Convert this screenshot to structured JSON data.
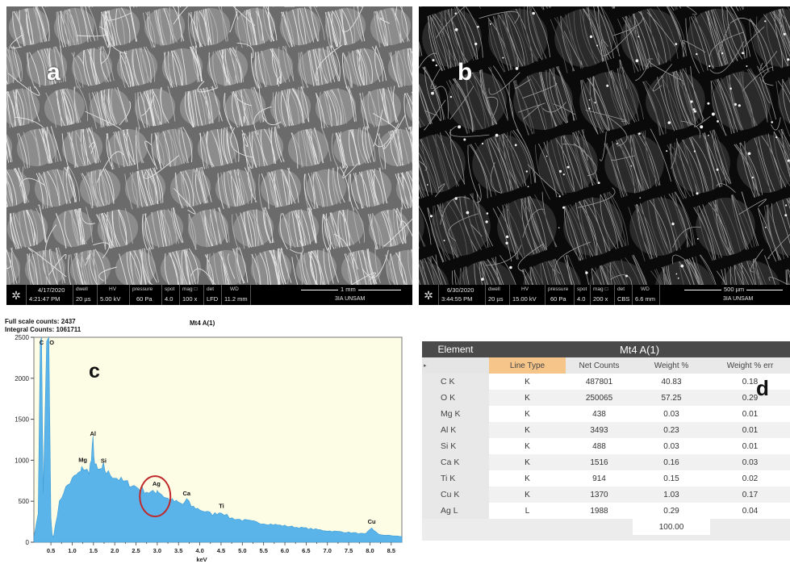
{
  "panels": {
    "a": {
      "letter": "a",
      "info": {
        "date": "4/17/2020",
        "time": "4:21:47 PM",
        "dwell_label": "dwell",
        "dwell": "20 µs",
        "hv_label": "HV",
        "hv": "5.00 kV",
        "pressure_label": "pressure",
        "pressure": "60 Pa",
        "spot_label": "spot",
        "spot": "4.0",
        "mag_label": "mag □",
        "mag": "100 x",
        "det_label": "det",
        "det": "LFD",
        "wd_label": "WD",
        "wd": "11.2 mm",
        "scale": "1 mm",
        "lab": "3IA UNSAM"
      }
    },
    "b": {
      "letter": "b",
      "info": {
        "date": "6/30/2020",
        "time": "3:44:55 PM",
        "dwell_label": "dwell",
        "dwell": "20 µs",
        "hv_label": "HV",
        "hv": "15.00 kV",
        "pressure_label": "pressure",
        "pressure": "60 Pa",
        "spot_label": "spot",
        "spot": "4.0",
        "mag_label": "mag □",
        "mag": "200 x",
        "det_label": "det",
        "det": "CBS",
        "wd_label": "WD",
        "wd": "6.6 mm",
        "scale": "500 µm",
        "lab": "3IA UNSAM"
      }
    }
  },
  "spectrum": {
    "letter": "c",
    "full_scale": "Full scale counts: 2437",
    "integral": "Integral Counts: 1061711",
    "title": "Mt4 A(1)"
  },
  "chart_data": {
    "type": "area",
    "title": "Mt4 A(1)",
    "xlabel": "keV",
    "ylabel": "",
    "xlim": [
      0.1,
      8.75
    ],
    "ylim": [
      0,
      2500
    ],
    "x_ticks": [
      "0.5",
      "1.0",
      "1.5",
      "2.0",
      "2.5",
      "3.0",
      "3.5",
      "4.0",
      "4.5",
      "5.0",
      "5.5",
      "6.0",
      "6.5",
      "7.0",
      "7.5",
      "8.0",
      "8.5"
    ],
    "y_ticks": [
      "0",
      "500",
      "1000",
      "1500",
      "2000",
      "2500"
    ],
    "x": [
      0.1,
      0.2,
      0.25,
      0.28,
      0.32,
      0.4,
      0.45,
      0.5,
      0.53,
      0.56,
      0.6,
      0.7,
      0.8,
      0.9,
      1.0,
      1.1,
      1.2,
      1.25,
      1.3,
      1.4,
      1.45,
      1.49,
      1.53,
      1.6,
      1.7,
      1.74,
      1.8,
      1.9,
      2.0,
      2.2,
      2.4,
      2.6,
      2.8,
      2.95,
      3.0,
      3.05,
      3.2,
      3.4,
      3.6,
      3.69,
      3.8,
      4.0,
      4.3,
      4.51,
      4.7,
      5.0,
      5.5,
      6.0,
      6.5,
      7.0,
      7.5,
      7.9,
      8.04,
      8.2,
      8.5,
      8.75
    ],
    "series": [
      {
        "values": [
          60,
          350,
          2450,
          2500,
          600,
          2450,
          2500,
          300,
          90,
          60,
          200,
          480,
          620,
          700,
          760,
          820,
          850,
          930,
          860,
          880,
          1000,
          1250,
          950,
          870,
          890,
          920,
          850,
          830,
          800,
          740,
          700,
          650,
          610,
          600,
          640,
          610,
          540,
          500,
          460,
          520,
          440,
          400,
          340,
          370,
          300,
          270,
          230,
          200,
          170,
          140,
          120,
          100,
          175,
          95,
          80,
          70
        ]
      }
    ],
    "peak_labels": [
      {
        "label": "C",
        "x": 0.28,
        "y": 2500
      },
      {
        "label": "O",
        "x": 0.52,
        "y": 2500
      },
      {
        "label": "Mg",
        "x": 1.25,
        "y": 930
      },
      {
        "label": "Al",
        "x": 1.49,
        "y": 1250
      },
      {
        "label": "Si",
        "x": 1.74,
        "y": 920
      },
      {
        "label": "Ag",
        "x": 2.98,
        "y": 640
      },
      {
        "label": "Ca",
        "x": 3.69,
        "y": 520
      },
      {
        "label": "Ti",
        "x": 4.51,
        "y": 370
      },
      {
        "label": "Cu",
        "x": 8.04,
        "y": 175
      }
    ],
    "highlight": {
      "label": "Ag",
      "x": 2.95,
      "y": 560,
      "color": "#c0282a"
    },
    "fill_color": "#5ab4ea",
    "background": "#fdfde6",
    "grid": false
  },
  "table": {
    "letter": "d",
    "element_header": "Element",
    "sample_header": "Mt4 A(1)",
    "row_marker": "▸",
    "columns": [
      "Line Type",
      "Net Counts",
      "Weight %",
      "Weight % err"
    ],
    "rows": [
      {
        "element": "C K",
        "line": "K",
        "net": "487801",
        "wt": "40.83",
        "err": "0.18"
      },
      {
        "element": "O K",
        "line": "K",
        "net": "250065",
        "wt": "57.25",
        "err": "0.29"
      },
      {
        "element": "Mg K",
        "line": "K",
        "net": "438",
        "wt": "0.03",
        "err": "0.01"
      },
      {
        "element": "Al K",
        "line": "K",
        "net": "3493",
        "wt": "0.23",
        "err": "0.01"
      },
      {
        "element": "Si K",
        "line": "K",
        "net": "488",
        "wt": "0.03",
        "err": "0.01"
      },
      {
        "element": "Ca K",
        "line": "K",
        "net": "1516",
        "wt": "0.16",
        "err": "0.03"
      },
      {
        "element": "Ti K",
        "line": "K",
        "net": "914",
        "wt": "0.15",
        "err": "0.02"
      },
      {
        "element": "Cu K",
        "line": "K",
        "net": "1370",
        "wt": "1.03",
        "err": "0.17"
      },
      {
        "element": "Ag L",
        "line": "L",
        "net": "1988",
        "wt": "0.29",
        "err": "0.04"
      }
    ],
    "total": "100.00"
  }
}
